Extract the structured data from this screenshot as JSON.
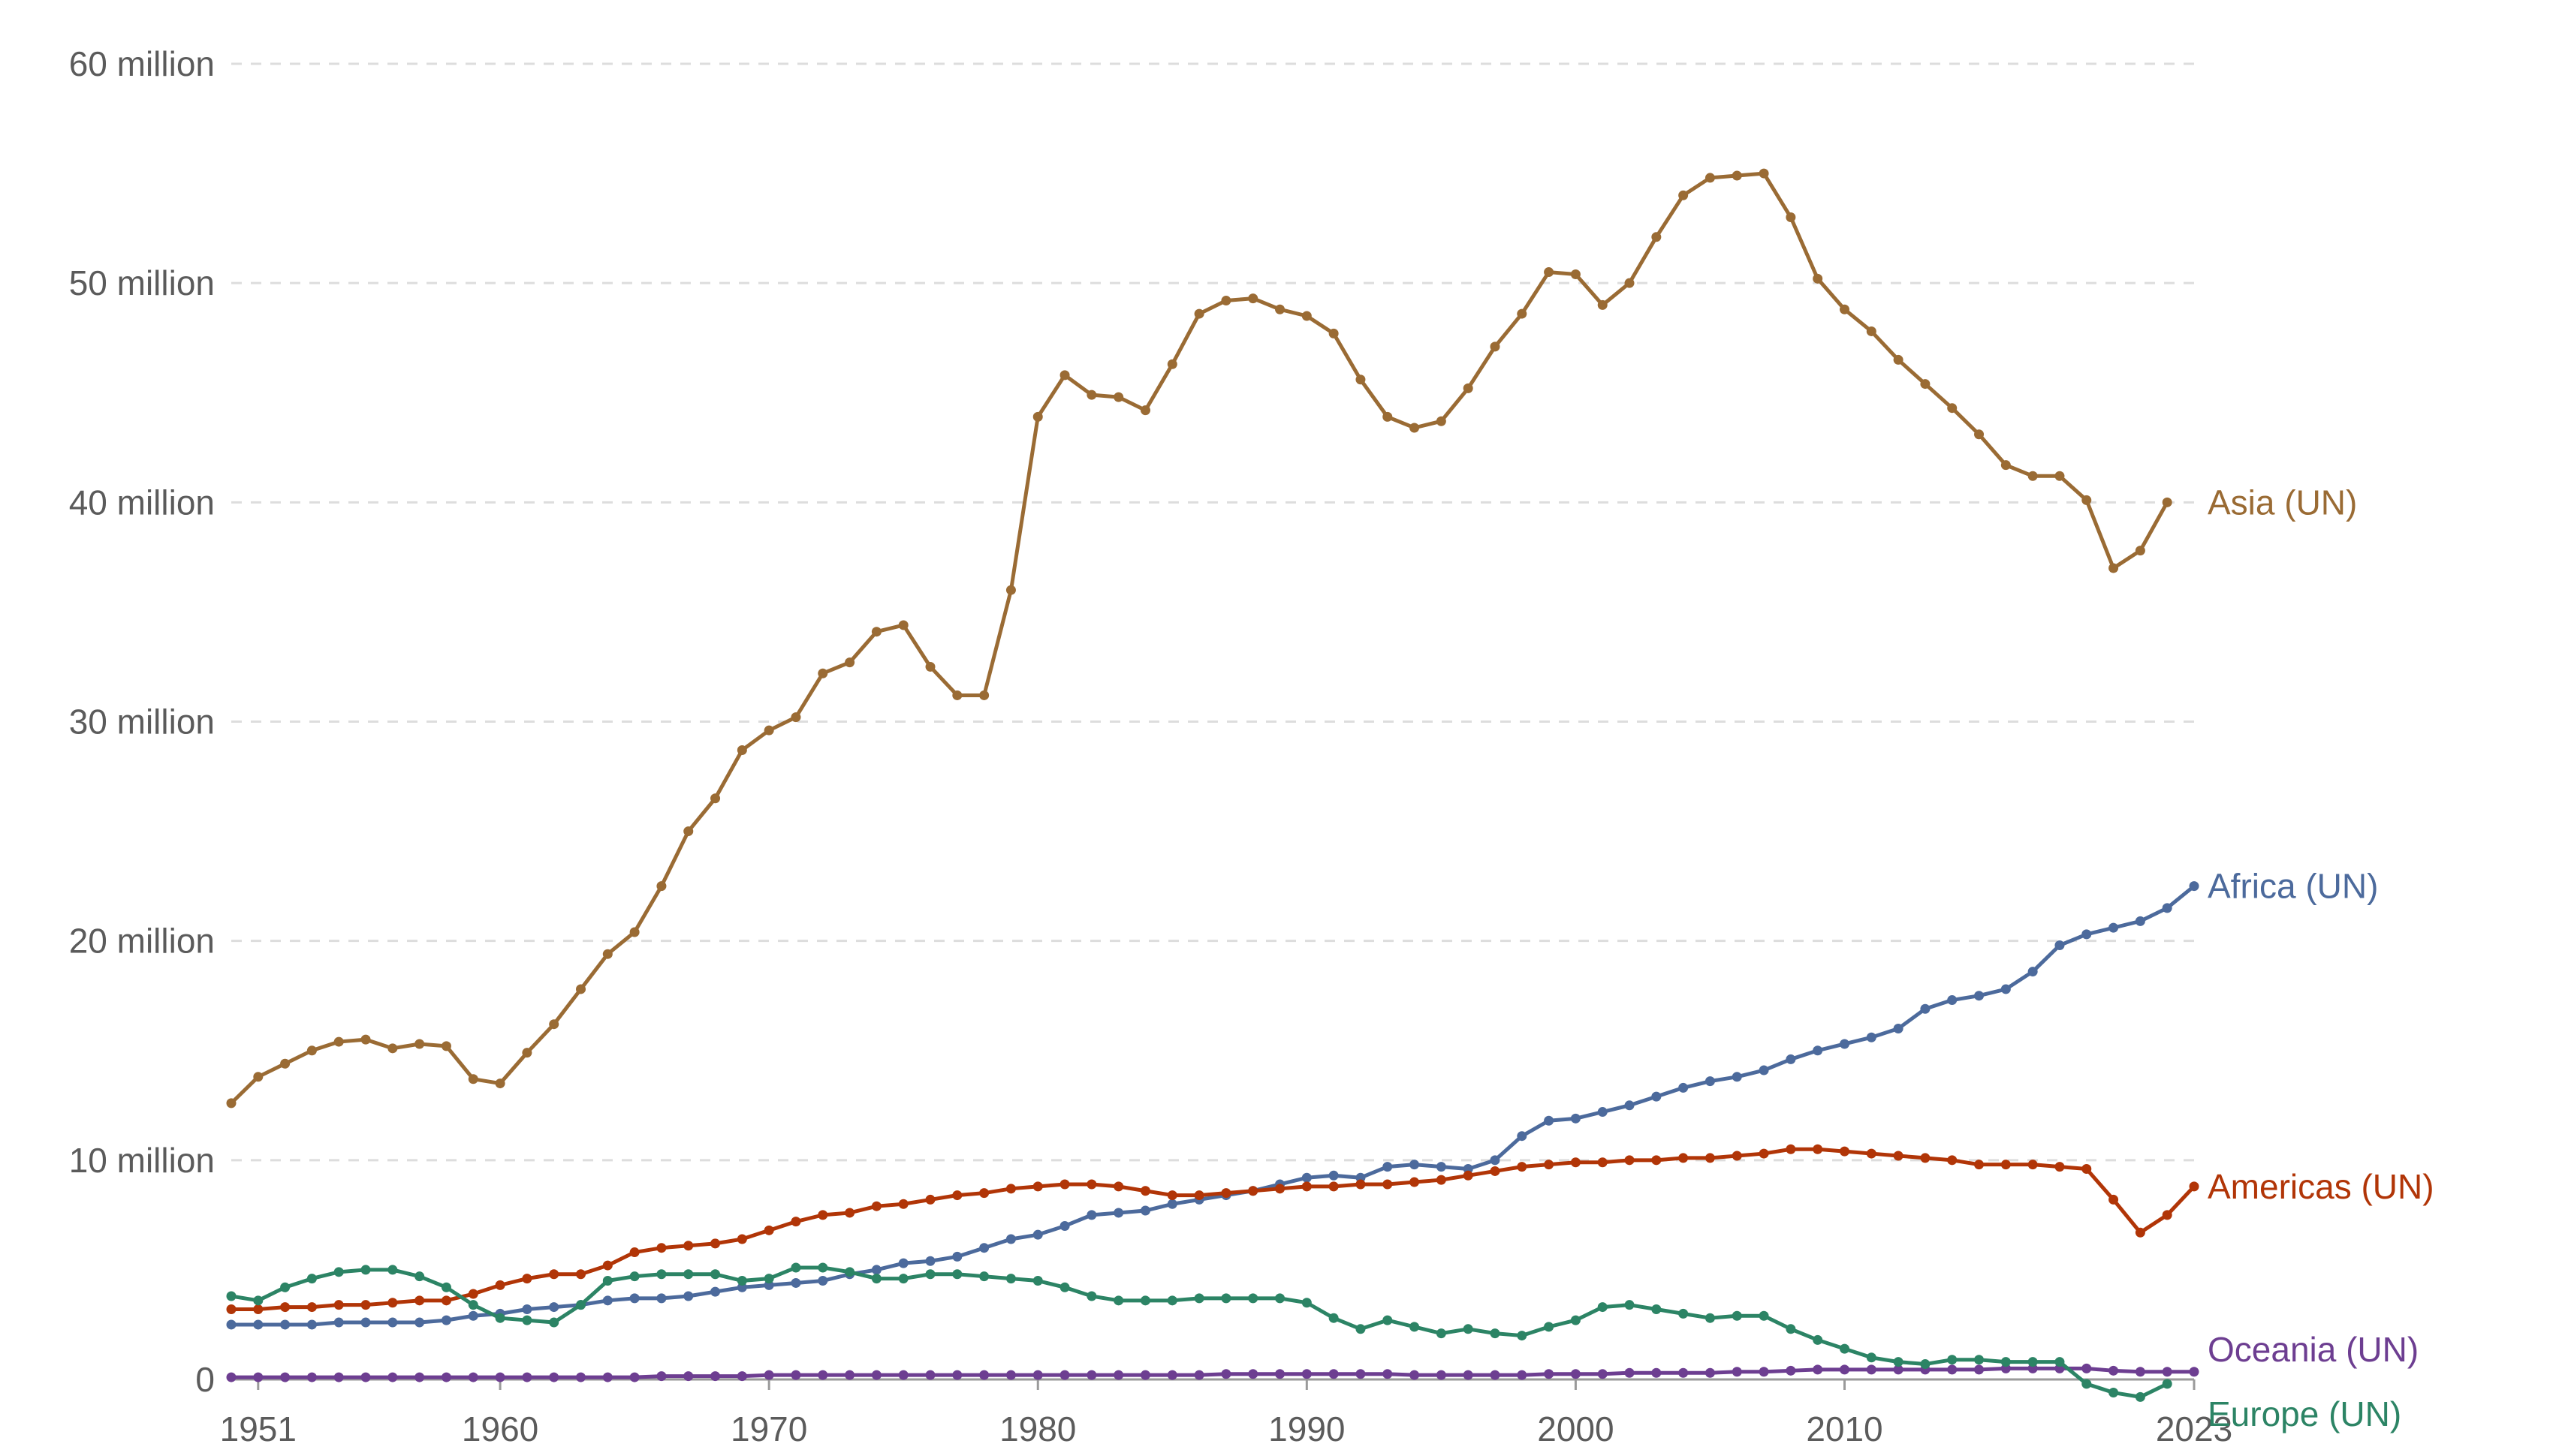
{
  "chart_data": {
    "type": "line",
    "title": "",
    "xlabel": "",
    "ylabel": "",
    "xlim": [
      1950,
      2023
    ],
    "ylim": [
      0,
      60000000
    ],
    "y_ticks": [
      {
        "value": 0,
        "label": "0"
      },
      {
        "value": 10000000,
        "label": "10 million"
      },
      {
        "value": 20000000,
        "label": "20 million"
      },
      {
        "value": 30000000,
        "label": "30 million"
      },
      {
        "value": 40000000,
        "label": "40 million"
      },
      {
        "value": 50000000,
        "label": "50 million"
      },
      {
        "value": 60000000,
        "label": "60 million"
      }
    ],
    "x_ticks": [
      {
        "value": 1951,
        "label": "1951"
      },
      {
        "value": 1960,
        "label": "1960"
      },
      {
        "value": 1970,
        "label": "1970"
      },
      {
        "value": 1980,
        "label": "1980"
      },
      {
        "value": 1990,
        "label": "1990"
      },
      {
        "value": 2000,
        "label": "2000"
      },
      {
        "value": 2010,
        "label": "2010"
      },
      {
        "value": 2023,
        "label": "2023"
      }
    ],
    "grid": "horizontal dashed",
    "legend": "inline labels at line ends",
    "x_start": 1950,
    "series": [
      {
        "name": "Asia (UN)",
        "color": "#9a6b34",
        "values": [
          12.6,
          13.8,
          14.4,
          15.0,
          15.4,
          15.5,
          15.1,
          15.3,
          15.2,
          13.7,
          13.5,
          14.9,
          16.2,
          17.8,
          19.4,
          20.4,
          22.5,
          25.0,
          26.5,
          28.7,
          29.6,
          30.2,
          32.2,
          32.7,
          34.1,
          34.4,
          32.5,
          31.2,
          31.2,
          36.0,
          43.9,
          45.8,
          44.9,
          44.8,
          44.2,
          46.3,
          48.6,
          49.2,
          49.3,
          48.8,
          48.5,
          47.7,
          45.6,
          43.9,
          43.4,
          43.7,
          45.2,
          47.1,
          48.6,
          50.5,
          50.4,
          49.0,
          50.0,
          52.1,
          54.0,
          54.8,
          54.9,
          55.0,
          53.0,
          50.2,
          48.8,
          47.8,
          46.5,
          45.4,
          44.3,
          43.1,
          41.7,
          41.2,
          41.2,
          40.1,
          37.0,
          37.8,
          40.0
        ]
      },
      {
        "name": "Africa (UN)",
        "color": "#4c6a9c",
        "values": [
          2.5,
          2.5,
          2.5,
          2.5,
          2.6,
          2.6,
          2.6,
          2.6,
          2.7,
          2.9,
          3.0,
          3.2,
          3.3,
          3.4,
          3.6,
          3.7,
          3.7,
          3.8,
          4.0,
          4.2,
          4.3,
          4.4,
          4.5,
          4.8,
          5.0,
          5.3,
          5.4,
          5.6,
          6.0,
          6.4,
          6.6,
          7.0,
          7.5,
          7.6,
          7.7,
          8.0,
          8.2,
          8.4,
          8.6,
          8.9,
          9.2,
          9.3,
          9.2,
          9.7,
          9.8,
          9.7,
          9.6,
          10.0,
          11.1,
          11.8,
          11.9,
          12.2,
          12.5,
          12.9,
          13.3,
          13.6,
          13.8,
          14.1,
          14.6,
          15.0,
          15.3,
          15.6,
          16.0,
          16.9,
          17.3,
          17.5,
          17.8,
          18.6,
          19.8,
          20.3,
          20.6,
          20.9,
          21.5,
          22.5
        ]
      },
      {
        "name": "Americas (UN)",
        "color": "#b13507",
        "values": [
          3.2,
          3.2,
          3.3,
          3.3,
          3.4,
          3.4,
          3.5,
          3.6,
          3.6,
          3.9,
          4.3,
          4.6,
          4.8,
          4.8,
          5.2,
          5.8,
          6.0,
          6.1,
          6.2,
          6.4,
          6.8,
          7.2,
          7.5,
          7.6,
          7.9,
          8.0,
          8.2,
          8.4,
          8.5,
          8.7,
          8.8,
          8.9,
          8.9,
          8.8,
          8.6,
          8.4,
          8.4,
          8.5,
          8.6,
          8.7,
          8.8,
          8.8,
          8.9,
          8.9,
          9.0,
          9.1,
          9.3,
          9.5,
          9.7,
          9.8,
          9.9,
          9.9,
          10.0,
          10.0,
          10.1,
          10.1,
          10.2,
          10.3,
          10.5,
          10.5,
          10.4,
          10.3,
          10.2,
          10.1,
          10.0,
          9.8,
          9.8,
          9.8,
          9.7,
          9.6,
          8.2,
          6.7,
          7.5,
          8.8
        ]
      },
      {
        "name": "Oceania (UN)",
        "color": "#6d3e91",
        "values": [
          0.1,
          0.1,
          0.1,
          0.1,
          0.1,
          0.1,
          0.1,
          0.1,
          0.1,
          0.1,
          0.1,
          0.1,
          0.1,
          0.1,
          0.1,
          0.1,
          0.15,
          0.15,
          0.15,
          0.15,
          0.2,
          0.2,
          0.2,
          0.2,
          0.2,
          0.2,
          0.2,
          0.2,
          0.2,
          0.2,
          0.2,
          0.2,
          0.2,
          0.2,
          0.2,
          0.2,
          0.2,
          0.25,
          0.25,
          0.25,
          0.25,
          0.25,
          0.25,
          0.25,
          0.2,
          0.2,
          0.2,
          0.2,
          0.2,
          0.25,
          0.25,
          0.25,
          0.3,
          0.3,
          0.3,
          0.3,
          0.35,
          0.35,
          0.4,
          0.45,
          0.45,
          0.45,
          0.45,
          0.45,
          0.45,
          0.45,
          0.5,
          0.5,
          0.5,
          0.5,
          0.4,
          0.35,
          0.35,
          0.35
        ]
      },
      {
        "name": "Europe (UN)",
        "color": "#2c8465",
        "values": [
          3.8,
          3.6,
          4.2,
          4.6,
          4.9,
          5.0,
          5.0,
          4.7,
          4.2,
          3.4,
          2.8,
          2.7,
          2.6,
          3.4,
          4.5,
          4.7,
          4.8,
          4.8,
          4.8,
          4.5,
          4.6,
          5.1,
          5.1,
          4.9,
          4.6,
          4.6,
          4.8,
          4.8,
          4.7,
          4.6,
          4.5,
          4.2,
          3.8,
          3.6,
          3.6,
          3.6,
          3.7,
          3.7,
          3.7,
          3.7,
          3.5,
          2.8,
          2.3,
          2.7,
          2.4,
          2.1,
          2.3,
          2.1,
          2.0,
          2.4,
          2.7,
          3.3,
          3.4,
          3.2,
          3.0,
          2.8,
          2.9,
          2.9,
          2.3,
          1.8,
          1.4,
          1.0,
          0.8,
          0.7,
          0.9,
          0.9,
          0.8,
          0.8,
          0.8,
          -0.2,
          -0.6,
          -0.8,
          -0.2
        ]
      }
    ]
  }
}
